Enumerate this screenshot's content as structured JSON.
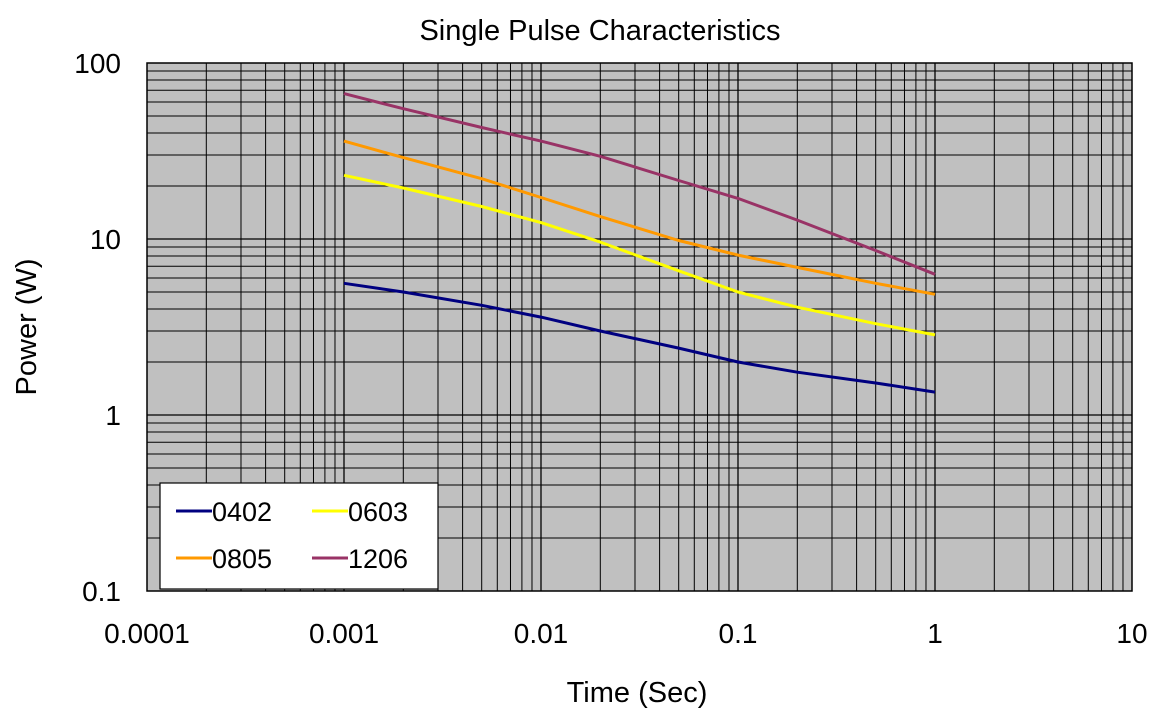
{
  "chart_data": {
    "type": "line",
    "title": "Single Pulse Characteristics",
    "xlabel": "Time (Sec)",
    "ylabel": "Power (W)",
    "x_scale": "log",
    "y_scale": "log",
    "xlim": [
      0.0001,
      10
    ],
    "ylim": [
      0.1,
      100
    ],
    "x_ticks": [
      "0.0001",
      "0.001",
      "0.01",
      "0.1",
      "1",
      "10"
    ],
    "y_ticks": [
      "0.1",
      "1",
      "10",
      "100"
    ],
    "grid": true,
    "legend_position": "bottom-left",
    "plot_background": "#c0c0c0",
    "series": [
      {
        "name": "0402",
        "color": "#000080",
        "x": [
          0.001,
          0.002,
          0.005,
          0.01,
          0.02,
          0.05,
          0.1,
          0.2,
          0.5,
          1
        ],
        "y": [
          5.6,
          5.0,
          4.2,
          3.6,
          3.0,
          2.4,
          2.0,
          1.75,
          1.52,
          1.35
        ]
      },
      {
        "name": "0603",
        "color": "#ffff00",
        "x": [
          0.001,
          0.002,
          0.005,
          0.01,
          0.02,
          0.05,
          0.1,
          0.2,
          0.5,
          1
        ],
        "y": [
          23,
          19.5,
          15.3,
          12.4,
          9.6,
          6.6,
          5.0,
          4.1,
          3.3,
          2.85
        ]
      },
      {
        "name": "0805",
        "color": "#ff9900",
        "x": [
          0.001,
          0.002,
          0.005,
          0.01,
          0.02,
          0.05,
          0.1,
          0.2,
          0.5,
          1
        ],
        "y": [
          36,
          29,
          22,
          17.2,
          13.4,
          9.8,
          8.1,
          6.9,
          5.6,
          4.85
        ]
      },
      {
        "name": "1206",
        "color": "#993366",
        "x": [
          0.001,
          0.002,
          0.005,
          0.01,
          0.02,
          0.05,
          0.1,
          0.2,
          0.5,
          1
        ],
        "y": [
          67,
          55,
          43,
          36,
          29.5,
          21.5,
          17,
          12.8,
          8.6,
          6.3
        ]
      }
    ]
  }
}
